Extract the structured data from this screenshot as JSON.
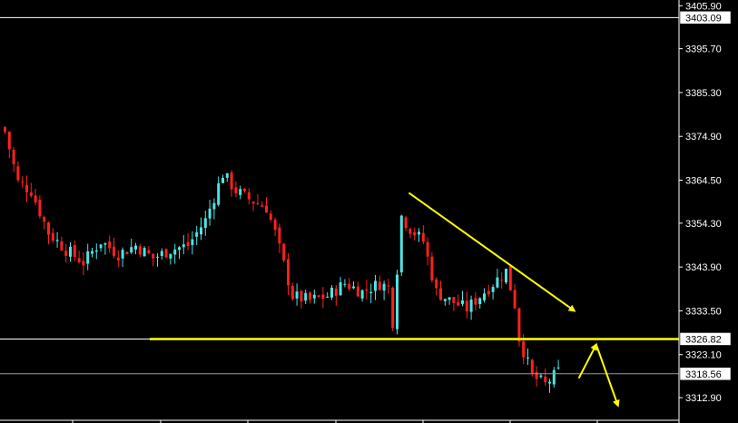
{
  "chart_data": {
    "type": "candlestick",
    "title": "",
    "xlabel": "",
    "ylabel": "",
    "ylim": [
      3308.5,
      3407.5
    ],
    "grid": false,
    "y_ticks": [
      "3405.90",
      "3395.70",
      "3385.30",
      "3374.90",
      "3364.50",
      "3354.30",
      "3343.90",
      "3333.50",
      "3323.10",
      "3312.90"
    ],
    "y_tick_values": [
      3405.9,
      3395.7,
      3385.3,
      3374.9,
      3364.5,
      3354.3,
      3343.9,
      3333.5,
      3323.1,
      3312.9
    ],
    "price_tags": [
      {
        "label": "3403.09",
        "value": 3403.09,
        "style": "white-line"
      },
      {
        "label": "3326.82",
        "value": 3326.82,
        "style": "white-line"
      },
      {
        "label": "3318.56",
        "value": 3318.56,
        "style": "gray-line"
      }
    ],
    "candle_count": 128,
    "close_path": [
      [
        0,
        3376
      ],
      [
        3,
        3364
      ],
      [
        6,
        3362
      ],
      [
        10,
        3352
      ],
      [
        14,
        3348
      ],
      [
        18,
        3345
      ],
      [
        22,
        3350
      ],
      [
        26,
        3347
      ],
      [
        30,
        3349
      ],
      [
        34,
        3346
      ],
      [
        38,
        3348
      ],
      [
        42,
        3349
      ],
      [
        46,
        3355
      ],
      [
        50,
        3366
      ],
      [
        53,
        3362
      ],
      [
        56,
        3360
      ],
      [
        60,
        3358
      ],
      [
        62,
        3352
      ],
      [
        66,
        3337
      ],
      [
        70,
        3336
      ],
      [
        74,
        3337
      ],
      [
        78,
        3340
      ],
      [
        82,
        3338
      ],
      [
        86,
        3340
      ],
      [
        88,
        3339
      ],
      [
        89,
        3331
      ],
      [
        91,
        3356
      ],
      [
        93,
        3353
      ],
      [
        96,
        3350
      ],
      [
        99,
        3338
      ],
      [
        102,
        3336
      ],
      [
        106,
        3334
      ],
      [
        110,
        3338
      ],
      [
        113,
        3341
      ],
      [
        115,
        3343
      ],
      [
        117,
        3335
      ],
      [
        118,
        3327
      ],
      [
        121,
        3318
      ],
      [
        124,
        3316
      ],
      [
        127,
        3319
      ]
    ],
    "trendlines": [
      {
        "color": "#ffff00",
        "from": [
          93,
          3361.5
        ],
        "to": [
          131,
          3333.5
        ],
        "arrow": true
      },
      {
        "color": "#ffff00",
        "from": [
          33,
          3326.82
        ],
        "to": [
          150,
          3326.82
        ],
        "arrow": false
      },
      {
        "color": "#ffff00",
        "from": [
          132,
          3317.5
        ],
        "to": [
          136,
          3325.5
        ],
        "arrow": true
      },
      {
        "color": "#ffff00",
        "from": [
          136,
          3325.5
        ],
        "to": [
          141,
          3311
        ],
        "arrow": true
      }
    ],
    "colors": {
      "background": "#000000",
      "bull": "#4fe3e3",
      "bear": "#ff2020",
      "axis": "#ffffff",
      "annotation": "#ffff00"
    }
  }
}
